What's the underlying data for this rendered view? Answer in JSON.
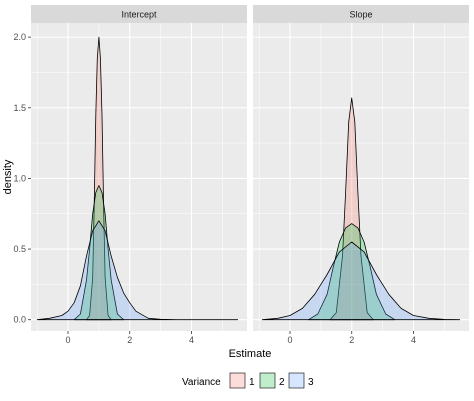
{
  "chart_data": {
    "type": "area",
    "xlabel": "Estimate",
    "ylabel": "density",
    "xlim": [
      -1.2,
      5.8
    ],
    "ylim": [
      -0.08,
      2.1
    ],
    "x_ticks": [
      0,
      2,
      4
    ],
    "y_ticks": [
      0.0,
      0.5,
      1.0,
      1.5,
      2.0
    ],
    "y_tick_labels": [
      "0.0",
      "0.5",
      "1.0",
      "1.5",
      "2.0"
    ],
    "grid": true,
    "legend": {
      "title": "Variance",
      "position": "bottom",
      "entries": [
        "1",
        "2",
        "3"
      ],
      "colors": [
        "#F8766D",
        "#00BA38",
        "#619CFF"
      ]
    },
    "panels": [
      {
        "title": "Intercept",
        "series": [
          {
            "name": "1",
            "x": [
              0.6,
              0.7,
              0.8,
              0.85,
              0.9,
              0.95,
              1.0,
              1.05,
              1.1,
              1.15,
              1.2,
              1.3,
              1.4
            ],
            "values": [
              0.0,
              0.03,
              0.3,
              0.85,
              1.45,
              1.85,
              2.0,
              1.85,
              1.45,
              0.85,
              0.3,
              0.03,
              0.0
            ]
          },
          {
            "name": "2",
            "x": [
              0.2,
              0.4,
              0.6,
              0.7,
              0.8,
              0.9,
              1.0,
              1.1,
              1.2,
              1.3,
              1.4,
              1.6,
              1.8
            ],
            "values": [
              0.0,
              0.04,
              0.28,
              0.5,
              0.75,
              0.9,
              0.95,
              0.9,
              0.75,
              0.5,
              0.28,
              0.04,
              0.0
            ]
          },
          {
            "name": "3",
            "x": [
              -1.0,
              -0.6,
              -0.2,
              0.0,
              0.2,
              0.4,
              0.6,
              0.8,
              1.0,
              1.2,
              1.4,
              1.6,
              1.8,
              2.0,
              2.2,
              2.6,
              3.0,
              3.5,
              4.5,
              5.5
            ],
            "values": [
              0.0,
              0.01,
              0.03,
              0.06,
              0.12,
              0.24,
              0.45,
              0.63,
              0.7,
              0.63,
              0.45,
              0.3,
              0.19,
              0.12,
              0.06,
              0.01,
              0.003,
              0.0,
              0.0,
              0.0
            ]
          }
        ]
      },
      {
        "title": "Slope",
        "series": [
          {
            "name": "1",
            "x": [
              1.3,
              1.5,
              1.7,
              1.8,
              1.9,
              2.0,
              2.1,
              2.2,
              2.3,
              2.5,
              2.7
            ],
            "values": [
              0.0,
              0.05,
              0.45,
              0.9,
              1.4,
              1.57,
              1.4,
              0.9,
              0.45,
              0.05,
              0.0
            ]
          },
          {
            "name": "2",
            "x": [
              0.6,
              0.9,
              1.2,
              1.4,
              1.6,
              1.8,
              2.0,
              2.2,
              2.4,
              2.6,
              2.8,
              3.1,
              3.4
            ],
            "values": [
              0.0,
              0.04,
              0.18,
              0.37,
              0.55,
              0.65,
              0.68,
              0.65,
              0.55,
              0.37,
              0.18,
              0.04,
              0.0
            ]
          },
          {
            "name": "3",
            "x": [
              -0.9,
              -0.4,
              0.0,
              0.4,
              0.8,
              1.2,
              1.6,
              2.0,
              2.4,
              2.8,
              3.2,
              3.6,
              4.0,
              4.5,
              5.0,
              5.5
            ],
            "values": [
              0.0,
              0.01,
              0.03,
              0.08,
              0.18,
              0.32,
              0.48,
              0.55,
              0.48,
              0.32,
              0.18,
              0.08,
              0.03,
              0.01,
              0.002,
              0.0
            ]
          }
        ]
      }
    ]
  }
}
